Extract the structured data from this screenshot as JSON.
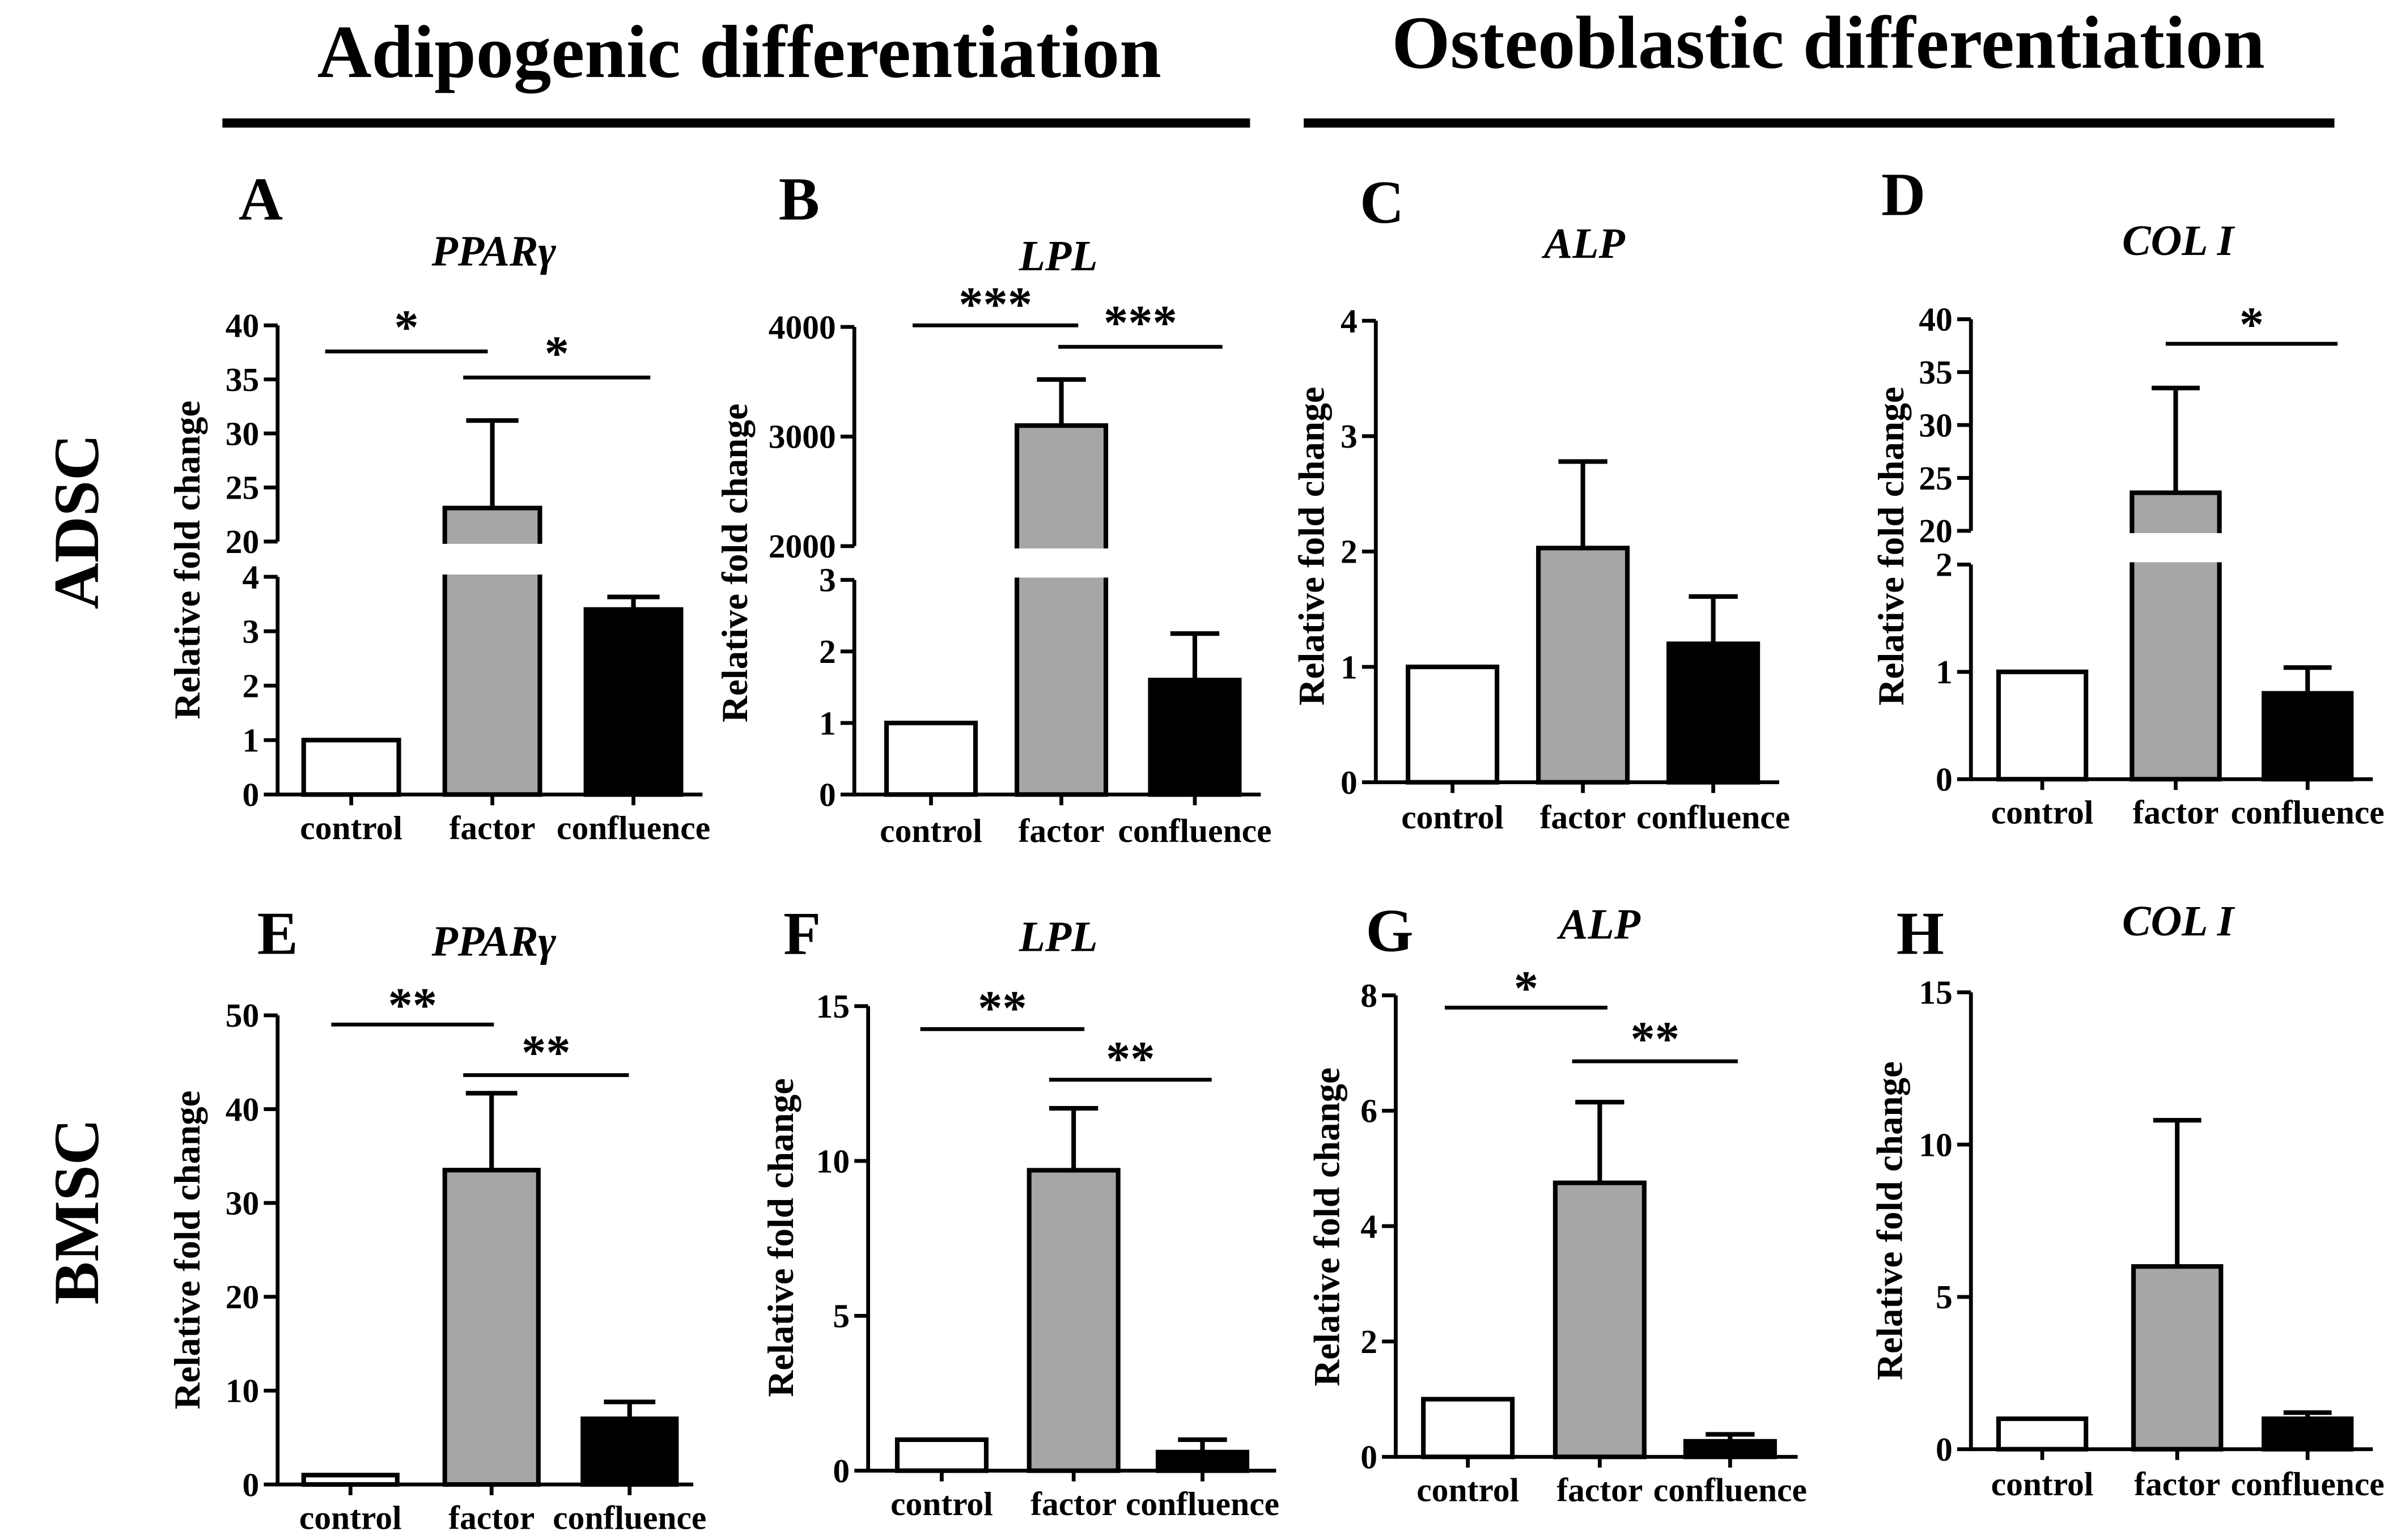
{
  "headers": {
    "adipogenic": "Adipogenic differentiation",
    "osteoblastic": "Osteoblastic differentiation"
  },
  "row_labels": {
    "adsc": "ADSC",
    "bmsc": "BMSC"
  },
  "colors": {
    "control": "#ffffff",
    "factor": "#a6a6a6",
    "confluence": "#000000",
    "outline": "#000000"
  },
  "chart_data": [
    {
      "panel": "A",
      "type": "bar",
      "title": "PPARγ",
      "ylabel": "Relative fold change",
      "categories": [
        "control",
        "factor",
        "confluence"
      ],
      "values": [
        1,
        23.1,
        3.4
      ],
      "errors": [
        0,
        8.1,
        0.23
      ],
      "y_segments": [
        [
          0,
          4
        ],
        [
          20,
          40
        ]
      ],
      "yticks": [
        0,
        1,
        2,
        3,
        4,
        20,
        25,
        30,
        35,
        40
      ],
      "significance": [
        {
          "pair": [
            0,
            1
          ],
          "label": "*"
        },
        {
          "pair": [
            1,
            2
          ],
          "label": "*"
        }
      ]
    },
    {
      "panel": "B",
      "type": "bar",
      "title": "LPL",
      "ylabel": "Relative fold change",
      "categories": [
        "control",
        "factor",
        "confluence"
      ],
      "values": [
        1,
        3100,
        1.6
      ],
      "errors": [
        0,
        420,
        0.65
      ],
      "y_segments": [
        [
          0,
          3
        ],
        [
          2000,
          4000
        ]
      ],
      "yticks": [
        0,
        1,
        2,
        3,
        2000,
        3000,
        4000
      ],
      "significance": [
        {
          "pair": [
            0,
            1
          ],
          "label": "***"
        },
        {
          "pair": [
            1,
            2
          ],
          "label": "***"
        }
      ]
    },
    {
      "panel": "C",
      "type": "bar",
      "title": "ALP",
      "ylabel": "Relative fold change",
      "categories": [
        "control",
        "factor",
        "confluence"
      ],
      "values": [
        1,
        2.03,
        1.2
      ],
      "errors": [
        0,
        0.75,
        0.41
      ],
      "y_segments": [
        [
          0,
          4
        ]
      ],
      "yticks": [
        0,
        1,
        2,
        3,
        4
      ],
      "significance": []
    },
    {
      "panel": "D",
      "type": "bar",
      "title": "COL I",
      "ylabel": "Relative fold change",
      "categories": [
        "control",
        "factor",
        "confluence"
      ],
      "values": [
        1,
        23.6,
        0.8
      ],
      "errors": [
        0,
        9.9,
        0.24
      ],
      "y_segments": [
        [
          0,
          2
        ],
        [
          20,
          40
        ]
      ],
      "yticks": [
        0,
        1,
        2,
        20,
        25,
        30,
        35,
        40
      ],
      "significance": [
        {
          "pair": [
            1,
            2
          ],
          "label": "*"
        }
      ]
    },
    {
      "panel": "E",
      "type": "bar",
      "title": "PPARγ",
      "ylabel": "Relative fold change",
      "categories": [
        "control",
        "factor",
        "confluence"
      ],
      "values": [
        1,
        33.5,
        7.0
      ],
      "errors": [
        0,
        8.2,
        1.8
      ],
      "y_segments": [
        [
          0,
          50
        ]
      ],
      "yticks": [
        0,
        10,
        20,
        30,
        40,
        50
      ],
      "significance": [
        {
          "pair": [
            0,
            1
          ],
          "label": "**"
        },
        {
          "pair": [
            1,
            2
          ],
          "label": "**"
        }
      ]
    },
    {
      "panel": "F",
      "type": "bar",
      "title": "LPL",
      "ylabel": "Relative fold change",
      "categories": [
        "control",
        "factor",
        "confluence"
      ],
      "values": [
        1,
        9.7,
        0.6
      ],
      "errors": [
        0,
        2.0,
        0.4
      ],
      "y_segments": [
        [
          0,
          15
        ]
      ],
      "yticks": [
        0,
        5,
        10,
        15
      ],
      "significance": [
        {
          "pair": [
            0,
            1
          ],
          "label": "**"
        },
        {
          "pair": [
            1,
            2
          ],
          "label": "**"
        }
      ]
    },
    {
      "panel": "G",
      "type": "bar",
      "title": "ALP",
      "ylabel": "Relative fold change",
      "categories": [
        "control",
        "factor",
        "confluence"
      ],
      "values": [
        1,
        4.75,
        0.27
      ],
      "errors": [
        0,
        1.4,
        0.12
      ],
      "y_segments": [
        [
          0,
          8
        ]
      ],
      "yticks": [
        0,
        2,
        4,
        6,
        8
      ],
      "significance": [
        {
          "pair": [
            0,
            1
          ],
          "label": "*"
        },
        {
          "pair": [
            1,
            2
          ],
          "label": "**"
        }
      ]
    },
    {
      "panel": "H",
      "type": "bar",
      "title": "COL I",
      "ylabel": "Relative fold change",
      "categories": [
        "control",
        "factor",
        "confluence"
      ],
      "values": [
        1,
        6.0,
        1.0
      ],
      "errors": [
        0,
        4.8,
        0.2
      ],
      "y_segments": [
        [
          0,
          15
        ]
      ],
      "yticks": [
        0,
        5,
        10,
        15
      ],
      "significance": []
    }
  ]
}
